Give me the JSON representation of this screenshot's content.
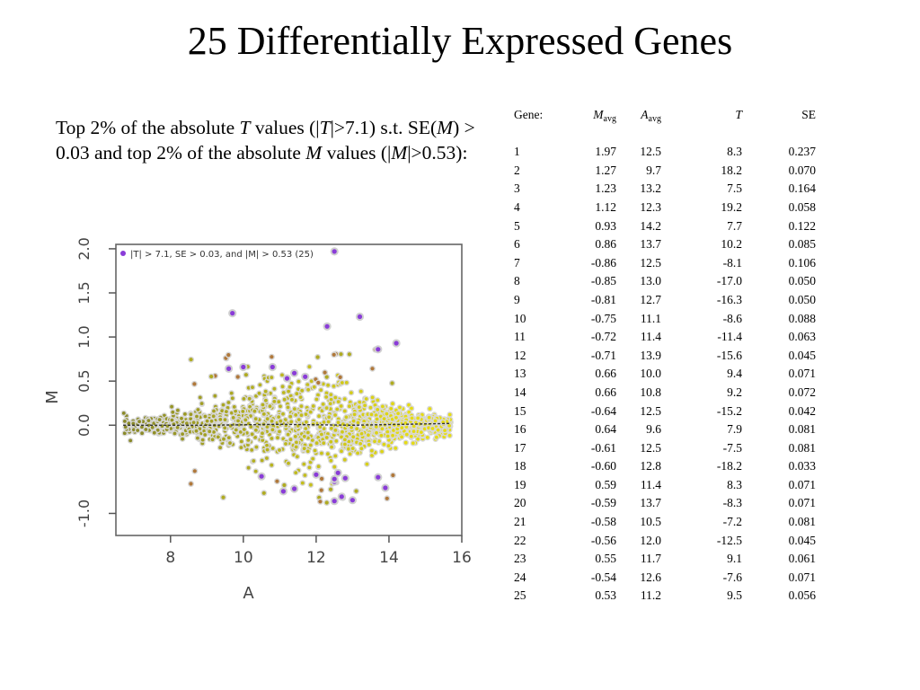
{
  "slide": {
    "title": "25 Differentially Expressed Genes",
    "description": {
      "p1": "Top 2% of the absolute ",
      "v1": "T",
      "p2": " values (|",
      "v2": "T",
      "p3": "|>7.1) s.t. SE(",
      "v3": "M",
      "p4": ") > 0.03 and top 2% of the absolute ",
      "v4": "M",
      "p5": " values (|",
      "v5": "M",
      "p6": "|>0.53):"
    }
  },
  "table": {
    "headers": {
      "gene": "Gene:",
      "m_main": "M",
      "m_sub": "avg",
      "a_main": "A",
      "a_sub": "avg",
      "t": "T",
      "se": "SE"
    },
    "rows": [
      [
        "1",
        "1.97",
        "12.5",
        "8.3",
        "0.237"
      ],
      [
        "2",
        "1.27",
        "9.7",
        "18.2",
        "0.070"
      ],
      [
        "3",
        "1.23",
        "13.2",
        "7.5",
        "0.164"
      ],
      [
        "4",
        "1.12",
        "12.3",
        "19.2",
        "0.058"
      ],
      [
        "5",
        "0.93",
        "14.2",
        "7.7",
        "0.122"
      ],
      [
        "6",
        "0.86",
        "13.7",
        "10.2",
        "0.085"
      ],
      [
        "7",
        "-0.86",
        "12.5",
        "-8.1",
        "0.106"
      ],
      [
        "8",
        "-0.85",
        "13.0",
        "-17.0",
        "0.050"
      ],
      [
        "9",
        "-0.81",
        "12.7",
        "-16.3",
        "0.050"
      ],
      [
        "10",
        "-0.75",
        "11.1",
        "-8.6",
        "0.088"
      ],
      [
        "11",
        "-0.72",
        "11.4",
        "-11.4",
        "0.063"
      ],
      [
        "12",
        "-0.71",
        "13.9",
        "-15.6",
        "0.045"
      ],
      [
        "13",
        "0.66",
        "10.0",
        "9.4",
        "0.071"
      ],
      [
        "14",
        "0.66",
        "10.8",
        "9.2",
        "0.072"
      ],
      [
        "15",
        "-0.64",
        "12.5",
        "-15.2",
        "0.042"
      ],
      [
        "16",
        "0.64",
        "9.6",
        "7.9",
        "0.081"
      ],
      [
        "17",
        "-0.61",
        "12.5",
        "-7.5",
        "0.081"
      ],
      [
        "18",
        "-0.60",
        "12.8",
        "-18.2",
        "0.033"
      ],
      [
        "19",
        "0.59",
        "11.4",
        "8.3",
        "0.071"
      ],
      [
        "20",
        "-0.59",
        "13.7",
        "-8.3",
        "0.071"
      ],
      [
        "21",
        "-0.58",
        "10.5",
        "-7.2",
        "0.081"
      ],
      [
        "22",
        "-0.56",
        "12.0",
        "-12.5",
        "0.045"
      ],
      [
        "23",
        "0.55",
        "11.7",
        "9.1",
        "0.061"
      ],
      [
        "24",
        "-0.54",
        "12.6",
        "-7.6",
        "0.071"
      ],
      [
        "25",
        "0.53",
        "11.2",
        "9.5",
        "0.056"
      ]
    ]
  },
  "chart_data": {
    "type": "scatter",
    "xlabel": "A",
    "ylabel": "M",
    "xlim": [
      6.5,
      16
    ],
    "ylim": [
      -1.25,
      2.05
    ],
    "xticks": [
      "8",
      "10",
      "12",
      "14",
      "16"
    ],
    "yticks": [
      "-1.0",
      "0.0",
      "0.5",
      "1.0",
      "1.5",
      "2.0"
    ],
    "legend": "|T| > 7.1, SE > 0.03, and |M| > 0.53 (25)",
    "legend_position": "top-left",
    "colors": {
      "highlight": "#8a3cd8",
      "low_a": "#8a8a2a",
      "high_a": "#e6dc14",
      "outlier_brown": "#b0783a",
      "trend": "#333333"
    },
    "highlighted": [
      [
        12.5,
        1.97
      ],
      [
        9.7,
        1.27
      ],
      [
        13.2,
        1.23
      ],
      [
        12.3,
        1.12
      ],
      [
        14.2,
        0.93
      ],
      [
        13.7,
        0.86
      ],
      [
        12.5,
        -0.86
      ],
      [
        13.0,
        -0.85
      ],
      [
        12.7,
        -0.81
      ],
      [
        11.1,
        -0.75
      ],
      [
        11.4,
        -0.72
      ],
      [
        13.9,
        -0.71
      ],
      [
        10.0,
        0.66
      ],
      [
        10.8,
        0.66
      ],
      [
        12.5,
        -0.64
      ],
      [
        9.6,
        0.64
      ],
      [
        12.5,
        -0.61
      ],
      [
        12.8,
        -0.6
      ],
      [
        11.4,
        0.59
      ],
      [
        13.7,
        -0.59
      ],
      [
        10.5,
        -0.58
      ],
      [
        12.0,
        -0.56
      ],
      [
        11.7,
        0.55
      ],
      [
        12.6,
        -0.54
      ],
      [
        11.2,
        0.53
      ]
    ],
    "trend": [
      [
        6.7,
        0.0
      ],
      [
        9.0,
        0.0
      ],
      [
        11.0,
        0.01
      ],
      [
        13.0,
        0.0
      ],
      [
        15.7,
        0.02
      ]
    ]
  }
}
